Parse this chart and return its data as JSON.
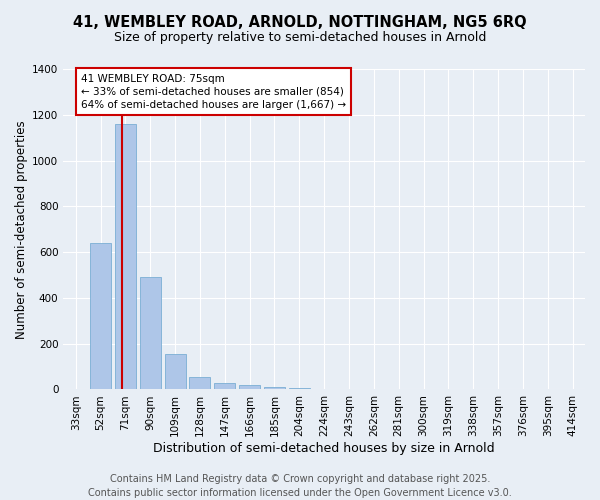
{
  "title": "41, WEMBLEY ROAD, ARNOLD, NOTTINGHAM, NG5 6RQ",
  "subtitle": "Size of property relative to semi-detached houses in Arnold",
  "xlabel": "Distribution of semi-detached houses by size in Arnold",
  "ylabel": "Number of semi-detached properties",
  "categories": [
    "33sqm",
    "52sqm",
    "71sqm",
    "90sqm",
    "109sqm",
    "128sqm",
    "147sqm",
    "166sqm",
    "185sqm",
    "204sqm",
    "224sqm",
    "243sqm",
    "262sqm",
    "281sqm",
    "300sqm",
    "319sqm",
    "338sqm",
    "357sqm",
    "376sqm",
    "395sqm",
    "414sqm"
  ],
  "values": [
    0,
    640,
    1160,
    490,
    155,
    55,
    30,
    20,
    10,
    5,
    2,
    1,
    0,
    0,
    0,
    0,
    0,
    0,
    0,
    0,
    0
  ],
  "bar_color": "#aec6e8",
  "bar_edge_color": "#7bafd4",
  "annotation_title": "41 WEMBLEY ROAD: 75sqm",
  "annotation_line1": "← 33% of semi-detached houses are smaller (854)",
  "annotation_line2": "64% of semi-detached houses are larger (1,667) →",
  "annotation_box_facecolor": "#ffffff",
  "annotation_box_edgecolor": "#cc0000",
  "property_line_color": "#cc0000",
  "property_line_x": 1.85,
  "ylim": [
    0,
    1400
  ],
  "yticks": [
    0,
    200,
    400,
    600,
    800,
    1000,
    1200,
    1400
  ],
  "background_color": "#e8eef5",
  "grid_color": "#ffffff",
  "footer_line1": "Contains HM Land Registry data © Crown copyright and database right 2025.",
  "footer_line2": "Contains public sector information licensed under the Open Government Licence v3.0.",
  "title_fontsize": 10.5,
  "subtitle_fontsize": 9,
  "ylabel_fontsize": 8.5,
  "xlabel_fontsize": 9,
  "tick_fontsize": 7.5,
  "annotation_fontsize": 7.5,
  "footer_fontsize": 7
}
